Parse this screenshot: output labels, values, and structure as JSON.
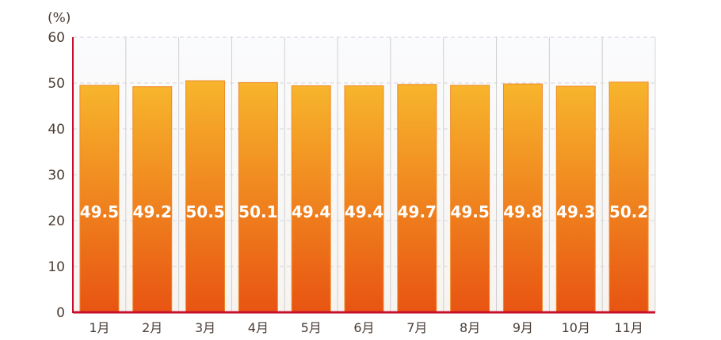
{
  "chart_data": {
    "type": "bar",
    "unit_label": "(%)",
    "categories": [
      "1月",
      "2月",
      "3月",
      "4月",
      "5月",
      "6月",
      "7月",
      "8月",
      "9月",
      "10月",
      "11月"
    ],
    "values": [
      49.5,
      49.2,
      50.5,
      50.1,
      49.4,
      49.4,
      49.7,
      49.5,
      49.8,
      49.3,
      50.2
    ],
    "data_labels": [
      "49.5",
      "49.2",
      "50.5",
      "50.1",
      "49.4",
      "49.4",
      "49.7",
      "49.5",
      "49.8",
      "49.3",
      "50.2"
    ],
    "ylim": [
      0,
      60
    ],
    "yticks": [
      "0",
      "10",
      "20",
      "30",
      "40",
      "50",
      "60"
    ],
    "grid": "horizontal dashed",
    "colors": {
      "bar_top": "#f7b52c",
      "bar_bottom": "#e85412",
      "axis": "#c8102e"
    }
  }
}
